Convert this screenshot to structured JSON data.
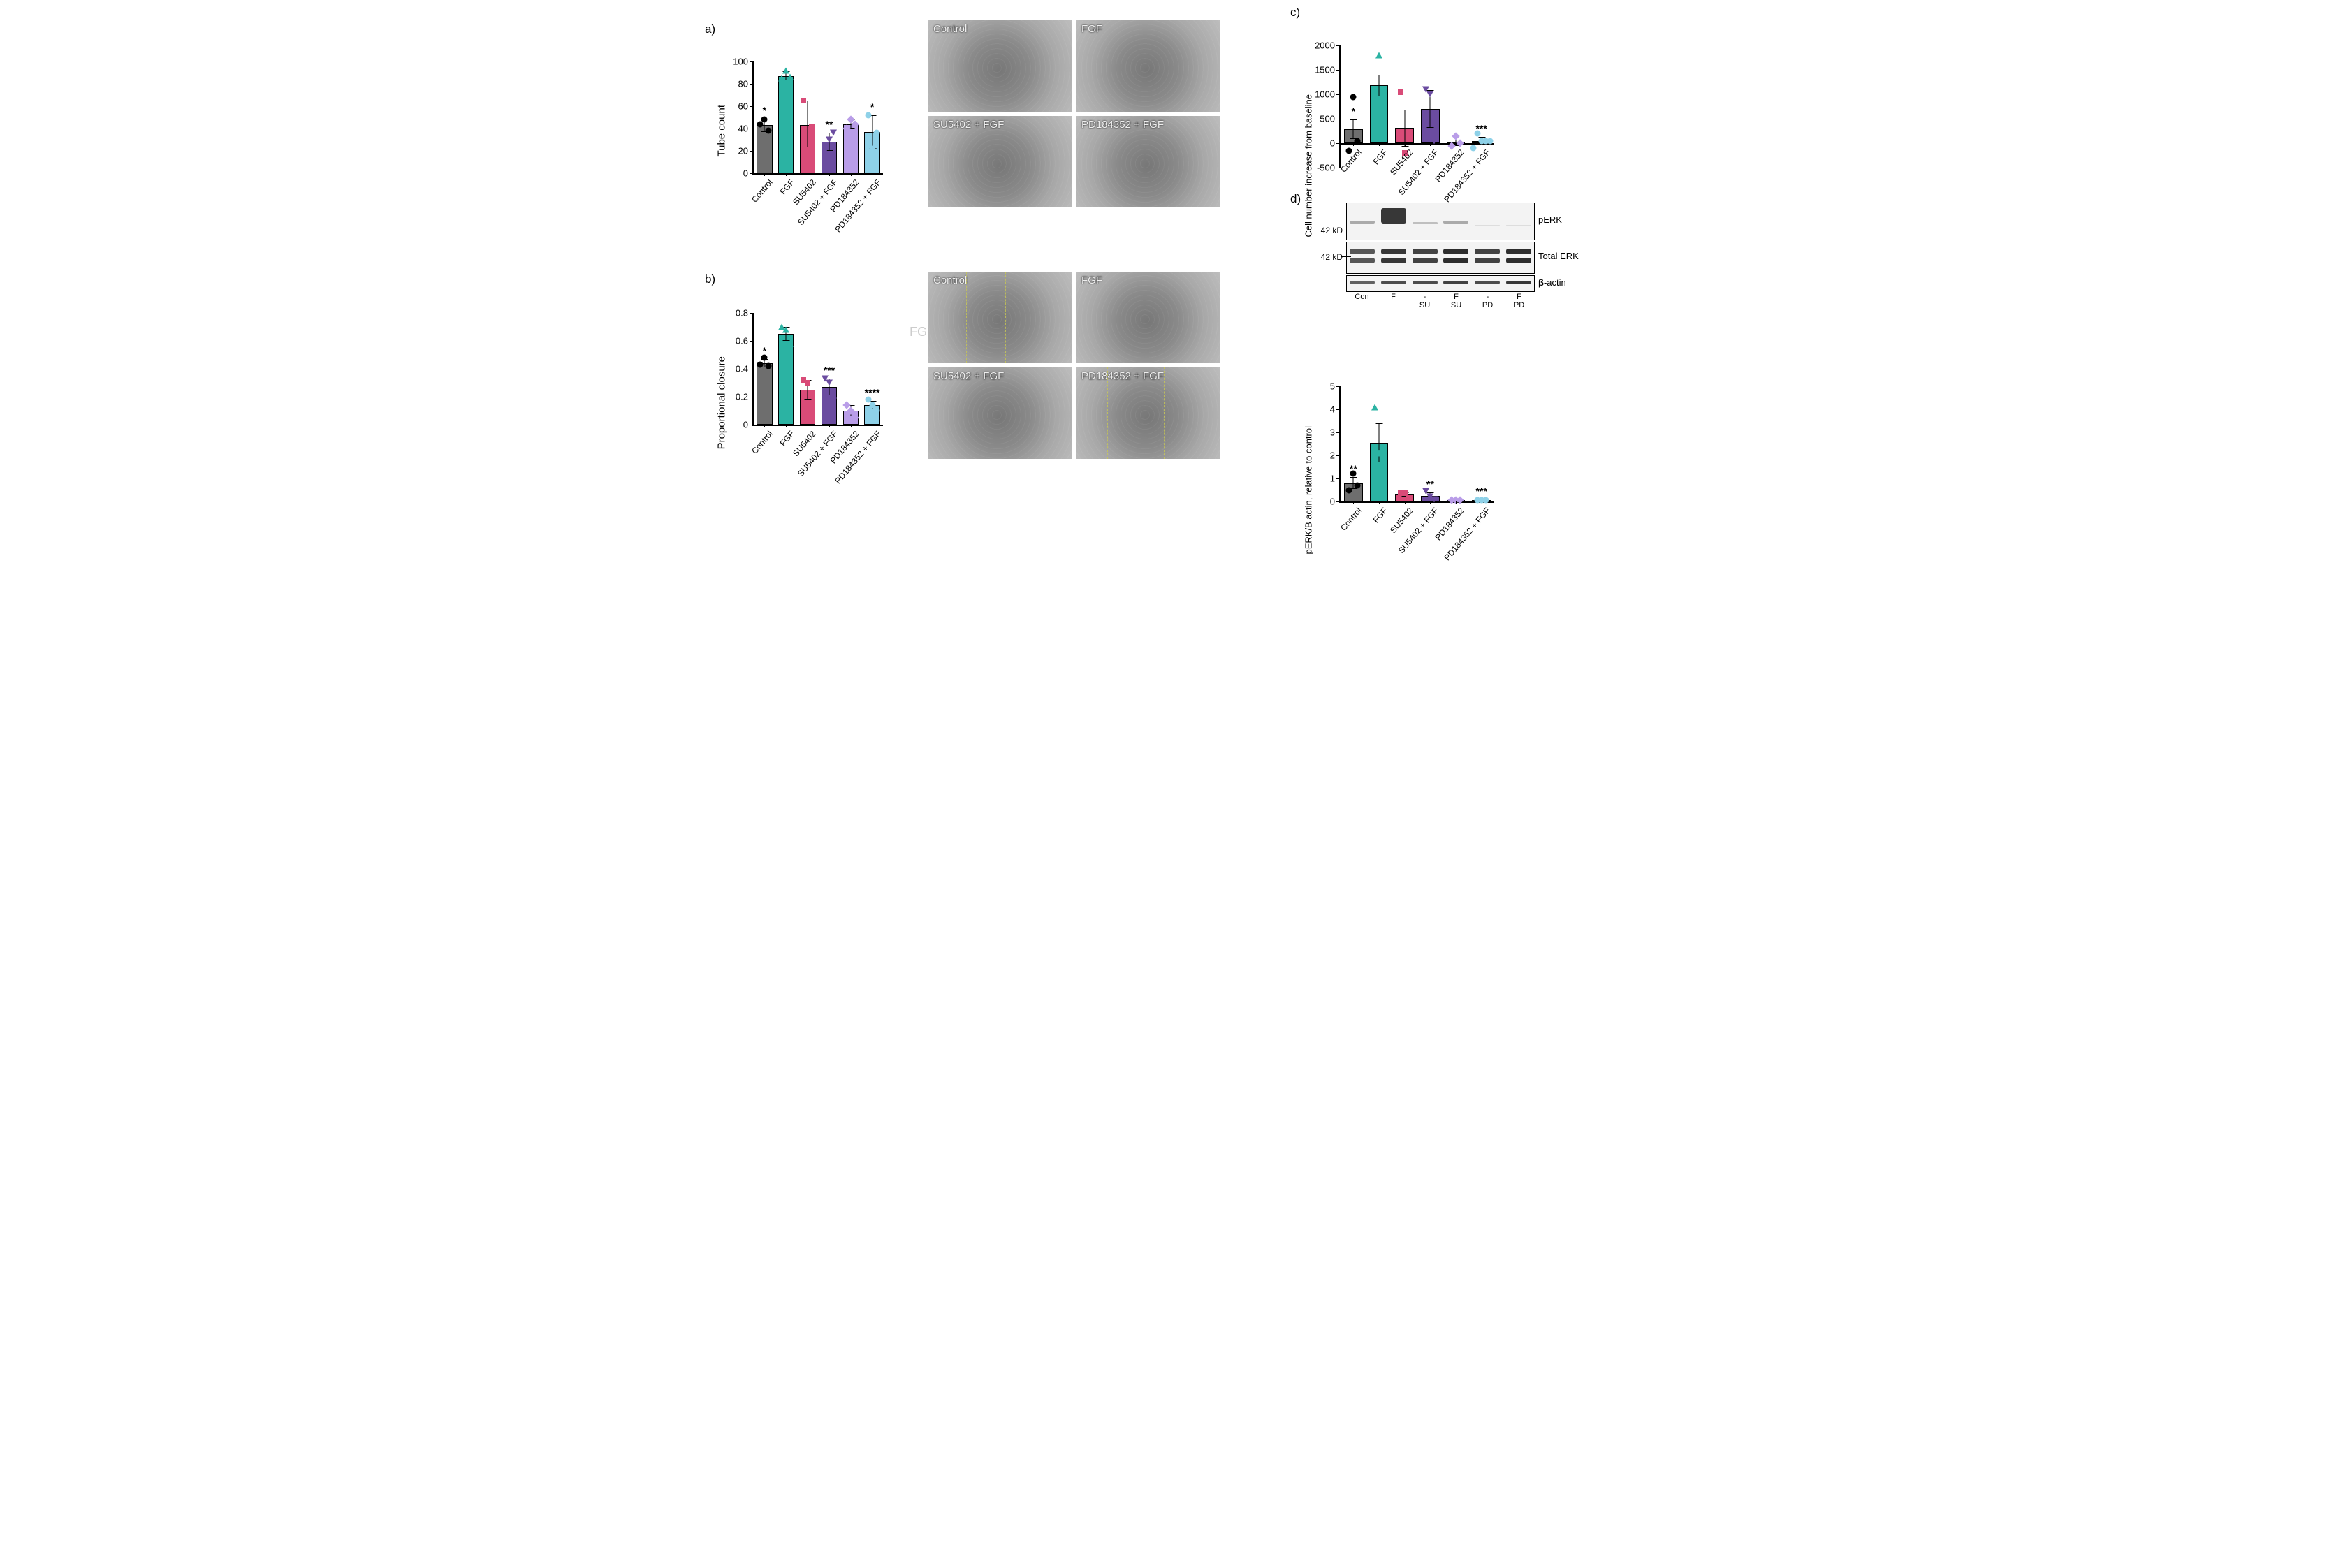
{
  "colors": {
    "Control": "#6e6e6e",
    "FGF": "#2bb3a3",
    "SU5402": "#d94b78",
    "SU5402 + FGF": "#6b4ca0",
    "PD184352": "#b99de8",
    "PD184352 + FGF": "#8ed1e8",
    "axis": "#000000",
    "background": "#ffffff"
  },
  "categories": [
    "Control",
    "FGF",
    "SU5402",
    "SU5402 + FGF",
    "PD184352",
    "PD184352 + FGF"
  ],
  "panel_a": {
    "label": "a)",
    "chart": {
      "type": "bar",
      "ylabel": "Tube count",
      "ylim": [
        0,
        100
      ],
      "ytick_step": 20,
      "bar_width": 0.72,
      "label_fontsize": 15,
      "tick_fontsize": 13,
      "values": [
        43,
        87,
        43,
        28,
        44,
        37
      ],
      "err": [
        6,
        4,
        22,
        8,
        4,
        15
      ],
      "points": [
        [
          44,
          48,
          38
        ],
        [
          85,
          92,
          86
        ],
        [
          65,
          21,
          42
        ],
        [
          20,
          30,
          36
        ],
        [
          40,
          48,
          44
        ],
        [
          52,
          22,
          36
        ]
      ],
      "sig": [
        "*",
        "",
        "",
        "**",
        "",
        "*"
      ]
    },
    "images": [
      {
        "caption": "Control"
      },
      {
        "caption": "FGF"
      },
      {
        "caption": "SU5402 + FGF"
      },
      {
        "caption": "PD184352 + FGF"
      }
    ]
  },
  "panel_b": {
    "label": "b)",
    "chart": {
      "type": "bar",
      "ylabel": "Proportional closure",
      "ylim": [
        0,
        0.8
      ],
      "ytick_step": 0.2,
      "bar_width": 0.72,
      "label_fontsize": 15,
      "tick_fontsize": 13,
      "values": [
        0.44,
        0.65,
        0.25,
        0.27,
        0.1,
        0.14
      ],
      "err": [
        0.03,
        0.05,
        0.07,
        0.06,
        0.04,
        0.03
      ],
      "points": [
        [
          0.43,
          0.48,
          0.42
        ],
        [
          0.7,
          0.68,
          0.58
        ],
        [
          0.32,
          0.3,
          0.12
        ],
        [
          0.33,
          0.3,
          0.17
        ],
        [
          0.14,
          0.1,
          0.05
        ],
        [
          0.18,
          0.14,
          0.1
        ]
      ],
      "sig": [
        "*",
        "",
        "",
        "***",
        "",
        "****"
      ]
    },
    "images": [
      {
        "caption": "Control"
      },
      {
        "caption": "FGF"
      },
      {
        "caption": "SU5402 + FGF"
      },
      {
        "caption": "PD184352 + FGF"
      }
    ],
    "ghost_text": "FG"
  },
  "panel_c": {
    "label": "c)",
    "chart": {
      "type": "bar",
      "ylabel": "Cell number increase from baseline",
      "ylim": [
        -500,
        2000
      ],
      "ytick_step": 500,
      "bar_width": 0.72,
      "label_fontsize": 15,
      "tick_fontsize": 13,
      "values": [
        290,
        1180,
        310,
        700,
        30,
        50
      ],
      "err": [
        200,
        220,
        380,
        380,
        90,
        80
      ],
      "points": [
        [
          -150,
          950,
          50
        ],
        [
          1000,
          1800,
          750
        ],
        [
          1050,
          -200,
          100
        ],
        [
          1100,
          1000,
          50
        ],
        [
          -50,
          150,
          0
        ],
        [
          -100,
          200,
          50,
          50,
          50
        ]
      ],
      "sig": [
        "*",
        "",
        "",
        "",
        "",
        "***"
      ]
    }
  },
  "panel_d": {
    "label": "d)",
    "blot": {
      "mw_label": "42 kD",
      "lanes": [
        "Con",
        "F",
        "-",
        "F",
        "-",
        "F"
      ],
      "lane_sub": [
        "",
        "",
        "SU",
        "SU",
        "PD",
        "PD"
      ],
      "rows": [
        {
          "label": "pERK",
          "height": 52,
          "bands": [
            [
              0.52,
              4,
              0.35
            ],
            [
              0.35,
              22,
              0.9
            ],
            [
              0.55,
              3,
              0.25
            ],
            [
              0.52,
              4,
              0.35
            ],
            [
              0.6,
              1,
              0.1
            ],
            [
              0.6,
              1,
              0.1
            ]
          ]
        },
        {
          "label": "Total ERK",
          "height": 44,
          "bands_double": true,
          "intensity": [
            0.75,
            0.9,
            0.85,
            0.95,
            0.85,
            0.95
          ]
        },
        {
          "label": "β-actin",
          "height": 22,
          "bands": [
            [
              0.45,
              5,
              0.7
            ],
            [
              0.45,
              5,
              0.8
            ],
            [
              0.45,
              5,
              0.8
            ],
            [
              0.45,
              5,
              0.85
            ],
            [
              0.45,
              5,
              0.8
            ],
            [
              0.45,
              5,
              0.9
            ]
          ],
          "label_bold_prefix": "β"
        }
      ]
    },
    "chart": {
      "type": "bar",
      "ylabel": "pERK/B actin, relative to control",
      "ylim": [
        0,
        5
      ],
      "ytick_step": 1,
      "bar_width": 0.72,
      "label_fontsize": 15,
      "tick_fontsize": 13,
      "values": [
        0.8,
        2.55,
        0.3,
        0.25,
        0.05,
        0.05
      ],
      "err": [
        0.25,
        0.85,
        0.1,
        0.15,
        0.03,
        0.03
      ],
      "points": [
        [
          0.5,
          1.2,
          0.7
        ],
        [
          4.1,
          2.1,
          1.5
        ],
        [
          0.4,
          0.35,
          0.15
        ],
        [
          0.45,
          0.2,
          0.1
        ],
        [
          0.05,
          0.05,
          0.05
        ],
        [
          0.05,
          0.05,
          0.05
        ]
      ],
      "sig": [
        "**",
        "",
        "",
        "**",
        "",
        "***"
      ]
    }
  }
}
